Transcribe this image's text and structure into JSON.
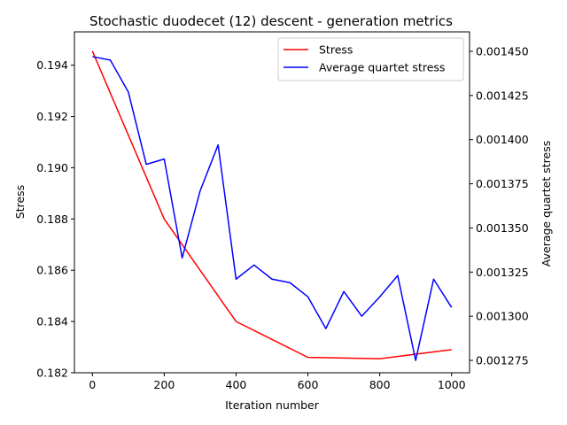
{
  "chart_data": {
    "type": "line",
    "title": "Stochastic duodecet (12) descent - generation metrics",
    "xlabel": "Iteration number",
    "ylabel": "Stress",
    "y2label": "Average quartet stress",
    "xlim": [
      -50,
      1050
    ],
    "ylim": [
      0.182,
      0.1953
    ],
    "y2lim": [
      0.001268,
      0.001461
    ],
    "x_ticks": [
      0,
      200,
      400,
      600,
      800,
      1000
    ],
    "y_ticks": [
      0.182,
      0.184,
      0.186,
      0.188,
      0.19,
      0.192,
      0.194
    ],
    "y_tick_labels": [
      "0.182",
      "0.184",
      "0.186",
      "0.188",
      "0.190",
      "0.192",
      "0.194"
    ],
    "y2_ticks": [
      0.001275,
      0.0013,
      0.001325,
      0.00135,
      0.001375,
      0.0014,
      0.001425,
      0.00145
    ],
    "y2_tick_labels": [
      "0.001275",
      "0.001300",
      "0.001325",
      "0.001350",
      "0.001375",
      "0.001400",
      "0.001425",
      "0.001450"
    ],
    "legend_position": "top-right",
    "grid": false,
    "series": [
      {
        "name": "Stress",
        "axis": "left",
        "color": "#ff0000",
        "x": [
          0,
          200,
          400,
          600,
          800,
          1000
        ],
        "values": [
          0.19455,
          0.188,
          0.184,
          0.1826,
          0.18255,
          0.1829
        ]
      },
      {
        "name": "Average quartet stress",
        "axis": "right",
        "color": "#0000ff",
        "x": [
          0,
          50,
          100,
          150,
          200,
          250,
          300,
          350,
          400,
          450,
          500,
          550,
          600,
          650,
          700,
          750,
          800,
          850,
          900,
          950,
          1000
        ],
        "values": [
          0.001447,
          0.001445,
          0.001427,
          0.001386,
          0.001389,
          0.001333,
          0.001371,
          0.001397,
          0.001321,
          0.001329,
          0.001321,
          0.001319,
          0.001311,
          0.001293,
          0.001314,
          0.0013,
          0.001311,
          0.001323,
          0.001275,
          0.001321,
          0.001305
        ]
      }
    ]
  }
}
